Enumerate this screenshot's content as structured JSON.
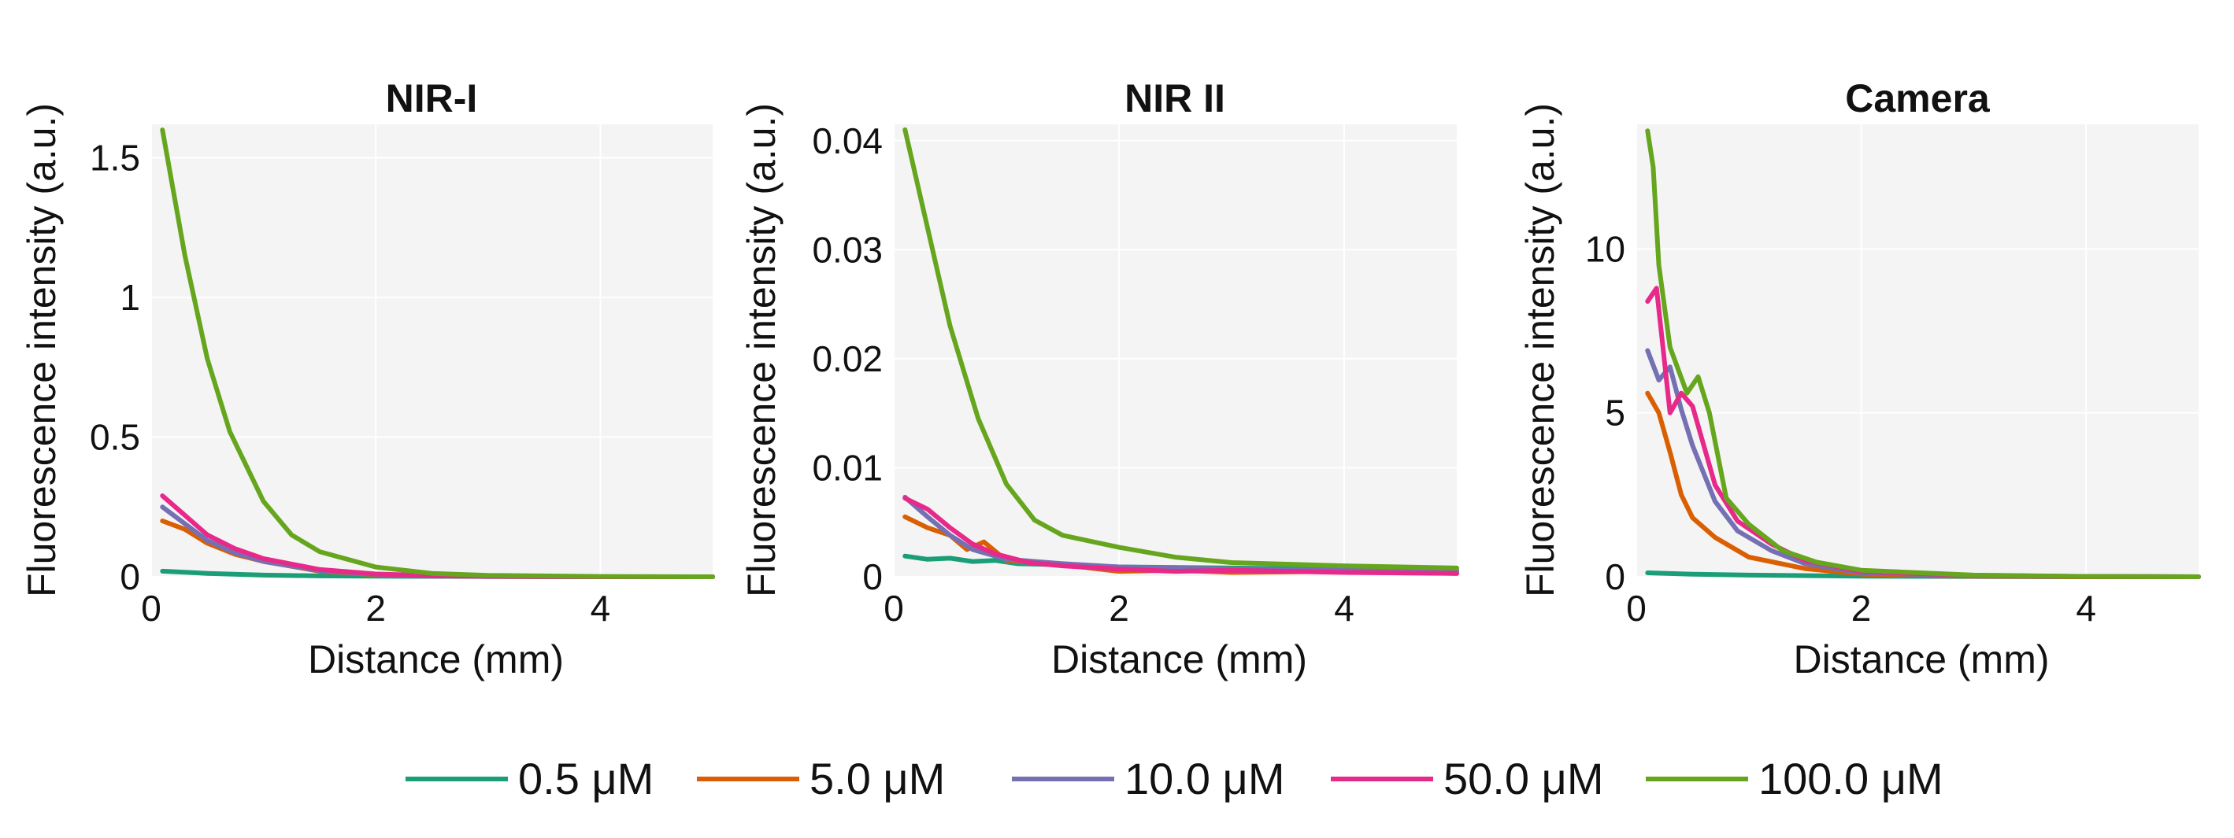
{
  "chart_data": [
    {
      "type": "line",
      "title": "NIR-I",
      "xlabel": "Distance (mm)",
      "ylabel": "Fluorescence intensity (a.u.)",
      "xlim": [
        0,
        5
      ],
      "ylim": [
        0,
        1.62
      ],
      "xticks": [
        0,
        2,
        4
      ],
      "xtick_labels": [
        "0",
        "2",
        "4"
      ],
      "yticks": [
        0,
        0.5,
        1,
        1.5
      ],
      "ytick_labels": [
        "0",
        "0.5",
        "1",
        "1.5"
      ],
      "grid": true,
      "series": [
        {
          "name": "0.5 µM",
          "x": [
            0.1,
            0.5,
            1,
            1.5,
            2,
            3,
            4,
            5
          ],
          "values": [
            0.02,
            0.012,
            0.006,
            0.003,
            0.002,
            0.001,
            0,
            0
          ]
        },
        {
          "name": "5.0 µM",
          "x": [
            0.1,
            0.3,
            0.5,
            0.75,
            1,
            1.5,
            2,
            2.5,
            3,
            4,
            5
          ],
          "values": [
            0.2,
            0.17,
            0.12,
            0.08,
            0.055,
            0.02,
            0.008,
            0.003,
            0.001,
            0,
            0
          ]
        },
        {
          "name": "10.0 µM",
          "x": [
            0.1,
            0.3,
            0.5,
            0.75,
            1,
            1.5,
            2,
            2.5,
            3,
            4,
            5
          ],
          "values": [
            0.25,
            0.19,
            0.13,
            0.085,
            0.055,
            0.022,
            0.009,
            0.003,
            0.001,
            0,
            0
          ]
        },
        {
          "name": "50.0 µM",
          "x": [
            0.1,
            0.3,
            0.5,
            0.75,
            1,
            1.5,
            2,
            2.5,
            3,
            4,
            5
          ],
          "values": [
            0.29,
            0.22,
            0.15,
            0.1,
            0.065,
            0.026,
            0.01,
            0.004,
            0.002,
            0,
            0
          ]
        },
        {
          "name": "100.0 µM",
          "x": [
            0.1,
            0.3,
            0.5,
            0.7,
            1,
            1.25,
            1.5,
            2,
            2.5,
            3,
            4,
            5
          ],
          "values": [
            1.6,
            1.15,
            0.78,
            0.52,
            0.27,
            0.15,
            0.09,
            0.035,
            0.012,
            0.005,
            0.001,
            0
          ]
        }
      ]
    },
    {
      "type": "line",
      "title": "NIR II",
      "xlabel": "Distance (mm)",
      "ylabel": "Fluorescence intensity (a.u.)",
      "xlim": [
        0,
        5
      ],
      "ylim": [
        0,
        0.0415
      ],
      "xticks": [
        0,
        2,
        4
      ],
      "xtick_labels": [
        "0",
        "2",
        "4"
      ],
      "yticks": [
        0,
        0.01,
        0.02,
        0.03,
        0.04
      ],
      "ytick_labels": [
        "0",
        "0.01",
        "0.02",
        "0.03",
        "0.04"
      ],
      "grid": true,
      "series": [
        {
          "name": "0.5 µM",
          "x": [
            0.1,
            0.3,
            0.5,
            0.7,
            0.9,
            1.1,
            1.5,
            2,
            3,
            4,
            5
          ],
          "values": [
            0.0019,
            0.0016,
            0.0017,
            0.0014,
            0.0015,
            0.0012,
            0.0011,
            0.0009,
            0.0008,
            0.0007,
            0.0006
          ]
        },
        {
          "name": "5.0 µM",
          "x": [
            0.1,
            0.3,
            0.5,
            0.65,
            0.8,
            1,
            1.5,
            2,
            2.5,
            3,
            4,
            5
          ],
          "values": [
            0.0055,
            0.0045,
            0.0038,
            0.0025,
            0.0032,
            0.0015,
            0.0011,
            0.0005,
            0.0006,
            0.0004,
            0.0005,
            0.0003
          ]
        },
        {
          "name": "10.0 µM",
          "x": [
            0.1,
            0.3,
            0.5,
            0.7,
            1,
            1.5,
            2,
            2.5,
            3,
            4,
            5
          ],
          "values": [
            0.0073,
            0.0055,
            0.0038,
            0.0025,
            0.0016,
            0.0012,
            0.0009,
            0.0008,
            0.0007,
            0.0006,
            0.0005
          ]
        },
        {
          "name": "50.0 µM",
          "x": [
            0.1,
            0.3,
            0.5,
            0.7,
            0.9,
            1.2,
            1.5,
            2,
            2.5,
            3,
            4,
            5
          ],
          "values": [
            0.0072,
            0.0062,
            0.0045,
            0.003,
            0.0021,
            0.0013,
            0.001,
            0.0007,
            0.0005,
            0.0006,
            0.0004,
            0.0003
          ]
        },
        {
          "name": "100.0 µM",
          "x": [
            0.1,
            0.3,
            0.5,
            0.75,
            1,
            1.25,
            1.5,
            2,
            2.5,
            3,
            4,
            5
          ],
          "values": [
            0.041,
            0.032,
            0.023,
            0.0145,
            0.0085,
            0.0052,
            0.0038,
            0.0027,
            0.0018,
            0.0013,
            0.001,
            0.0008
          ]
        }
      ]
    },
    {
      "type": "line",
      "title": "Camera",
      "xlabel": "Distance (mm)",
      "ylabel": "Fluorescence intensity (a.u.)",
      "xlim": [
        0,
        5
      ],
      "ylim": [
        0,
        13.8
      ],
      "xticks": [
        0,
        2,
        4
      ],
      "xtick_labels": [
        "0",
        "2",
        "4"
      ],
      "yticks": [
        0,
        5,
        10
      ],
      "ytick_labels": [
        "0",
        "5",
        "10"
      ],
      "grid": true,
      "series": [
        {
          "name": "0.5 µM",
          "x": [
            0.1,
            0.5,
            1,
            2,
            3,
            4,
            5
          ],
          "values": [
            0.12,
            0.08,
            0.05,
            0.02,
            0.01,
            0,
            0
          ]
        },
        {
          "name": "5.0 µM",
          "x": [
            0.1,
            0.2,
            0.3,
            0.4,
            0.5,
            0.7,
            1,
            1.5,
            2,
            3,
            4,
            5
          ],
          "values": [
            5.6,
            5.0,
            3.8,
            2.5,
            1.8,
            1.2,
            0.6,
            0.25,
            0.08,
            0.02,
            0,
            0
          ]
        },
        {
          "name": "10.0 µM",
          "x": [
            0.1,
            0.2,
            0.3,
            0.4,
            0.5,
            0.7,
            0.9,
            1.2,
            1.5,
            2,
            3,
            4,
            5
          ],
          "values": [
            6.9,
            6.0,
            6.4,
            5.1,
            4.0,
            2.3,
            1.4,
            0.8,
            0.4,
            0.12,
            0.03,
            0.01,
            0
          ]
        },
        {
          "name": "50.0 µM",
          "x": [
            0.1,
            0.18,
            0.3,
            0.4,
            0.5,
            0.7,
            0.9,
            1.2,
            1.5,
            2,
            3,
            4,
            5
          ],
          "values": [
            8.4,
            8.8,
            5.0,
            5.6,
            5.2,
            2.8,
            1.7,
            1.0,
            0.5,
            0.16,
            0.04,
            0.01,
            0
          ]
        },
        {
          "name": "100.0 µM",
          "x": [
            0.1,
            0.15,
            0.2,
            0.3,
            0.45,
            0.55,
            0.65,
            0.8,
            1,
            1.3,
            1.6,
            2,
            3,
            4,
            5
          ],
          "values": [
            13.6,
            12.5,
            9.5,
            7.0,
            5.6,
            6.1,
            5.0,
            2.4,
            1.6,
            0.8,
            0.45,
            0.2,
            0.05,
            0.01,
            0
          ]
        }
      ]
    }
  ],
  "legend": [
    {
      "label": "0.5 μM",
      "color": "#1b9e77"
    },
    {
      "label": "5.0 μM",
      "color": "#d95f02"
    },
    {
      "label": "10.0 μM",
      "color": "#7570b3"
    },
    {
      "label": "50.0 μM",
      "color": "#e7298a"
    },
    {
      "label": "100.0 μM",
      "color": "#66a61e"
    }
  ]
}
